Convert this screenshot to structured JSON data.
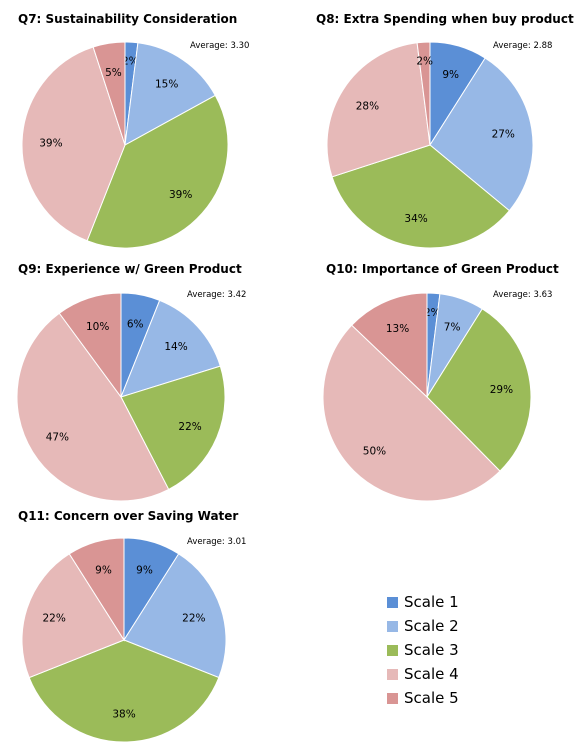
{
  "colors": [
    "#5b8fd6",
    "#97b8e6",
    "#9bbb59",
    "#e6b9b8",
    "#d99594"
  ],
  "legend": [
    "Scale 1",
    "Scale 2",
    "Scale 3",
    "Scale 4",
    "Scale 5"
  ],
  "chart_data": [
    {
      "type": "pie",
      "title": "Q7: Sustainability Consideration",
      "average_label": "Average: 3.30",
      "categories": [
        "Scale 1",
        "Scale 2",
        "Scale 3",
        "Scale 4",
        "Scale 5"
      ],
      "values": [
        2,
        15,
        39,
        39,
        5
      ],
      "labels": [
        "2%",
        "15%",
        "39%",
        "39%",
        "5%"
      ]
    },
    {
      "type": "pie",
      "title": "Q8: Extra Spending when buy product",
      "average_label": "Average: 2.88",
      "categories": [
        "Scale 1",
        "Scale 2",
        "Scale 3",
        "Scale 4",
        "Scale 5"
      ],
      "values": [
        9,
        27,
        34,
        28,
        2
      ],
      "labels": [
        "9%",
        "27%",
        "34%",
        "28%",
        "2%"
      ]
    },
    {
      "type": "pie",
      "title": "Q9: Experience w/ Green Product",
      "average_label": "Average: 3.42",
      "categories": [
        "Scale 1",
        "Scale 2",
        "Scale 3",
        "Scale 4",
        "Scale 5"
      ],
      "values": [
        6,
        14,
        22,
        47,
        10
      ],
      "labels": [
        "6%",
        "14%",
        "22%",
        "47%",
        "10%"
      ]
    },
    {
      "type": "pie",
      "title": "Q10: Importance of Green Product",
      "average_label": "Average: 3.63",
      "categories": [
        "Scale 1",
        "Scale 2",
        "Scale 3",
        "Scale 4",
        "Scale 5"
      ],
      "values": [
        2,
        7,
        29,
        50,
        13
      ],
      "labels": [
        "2%",
        "7%",
        "29%",
        "50%",
        "13%"
      ]
    },
    {
      "type": "pie",
      "title": "Q11: Concern over Saving Water",
      "average_label": "Average: 3.01",
      "categories": [
        "Scale 1",
        "Scale 2",
        "Scale 3",
        "Scale 4",
        "Scale 5"
      ],
      "values": [
        9,
        22,
        38,
        22,
        9
      ],
      "labels": [
        "9%",
        "22%",
        "38%",
        "22%",
        "9%"
      ]
    }
  ]
}
